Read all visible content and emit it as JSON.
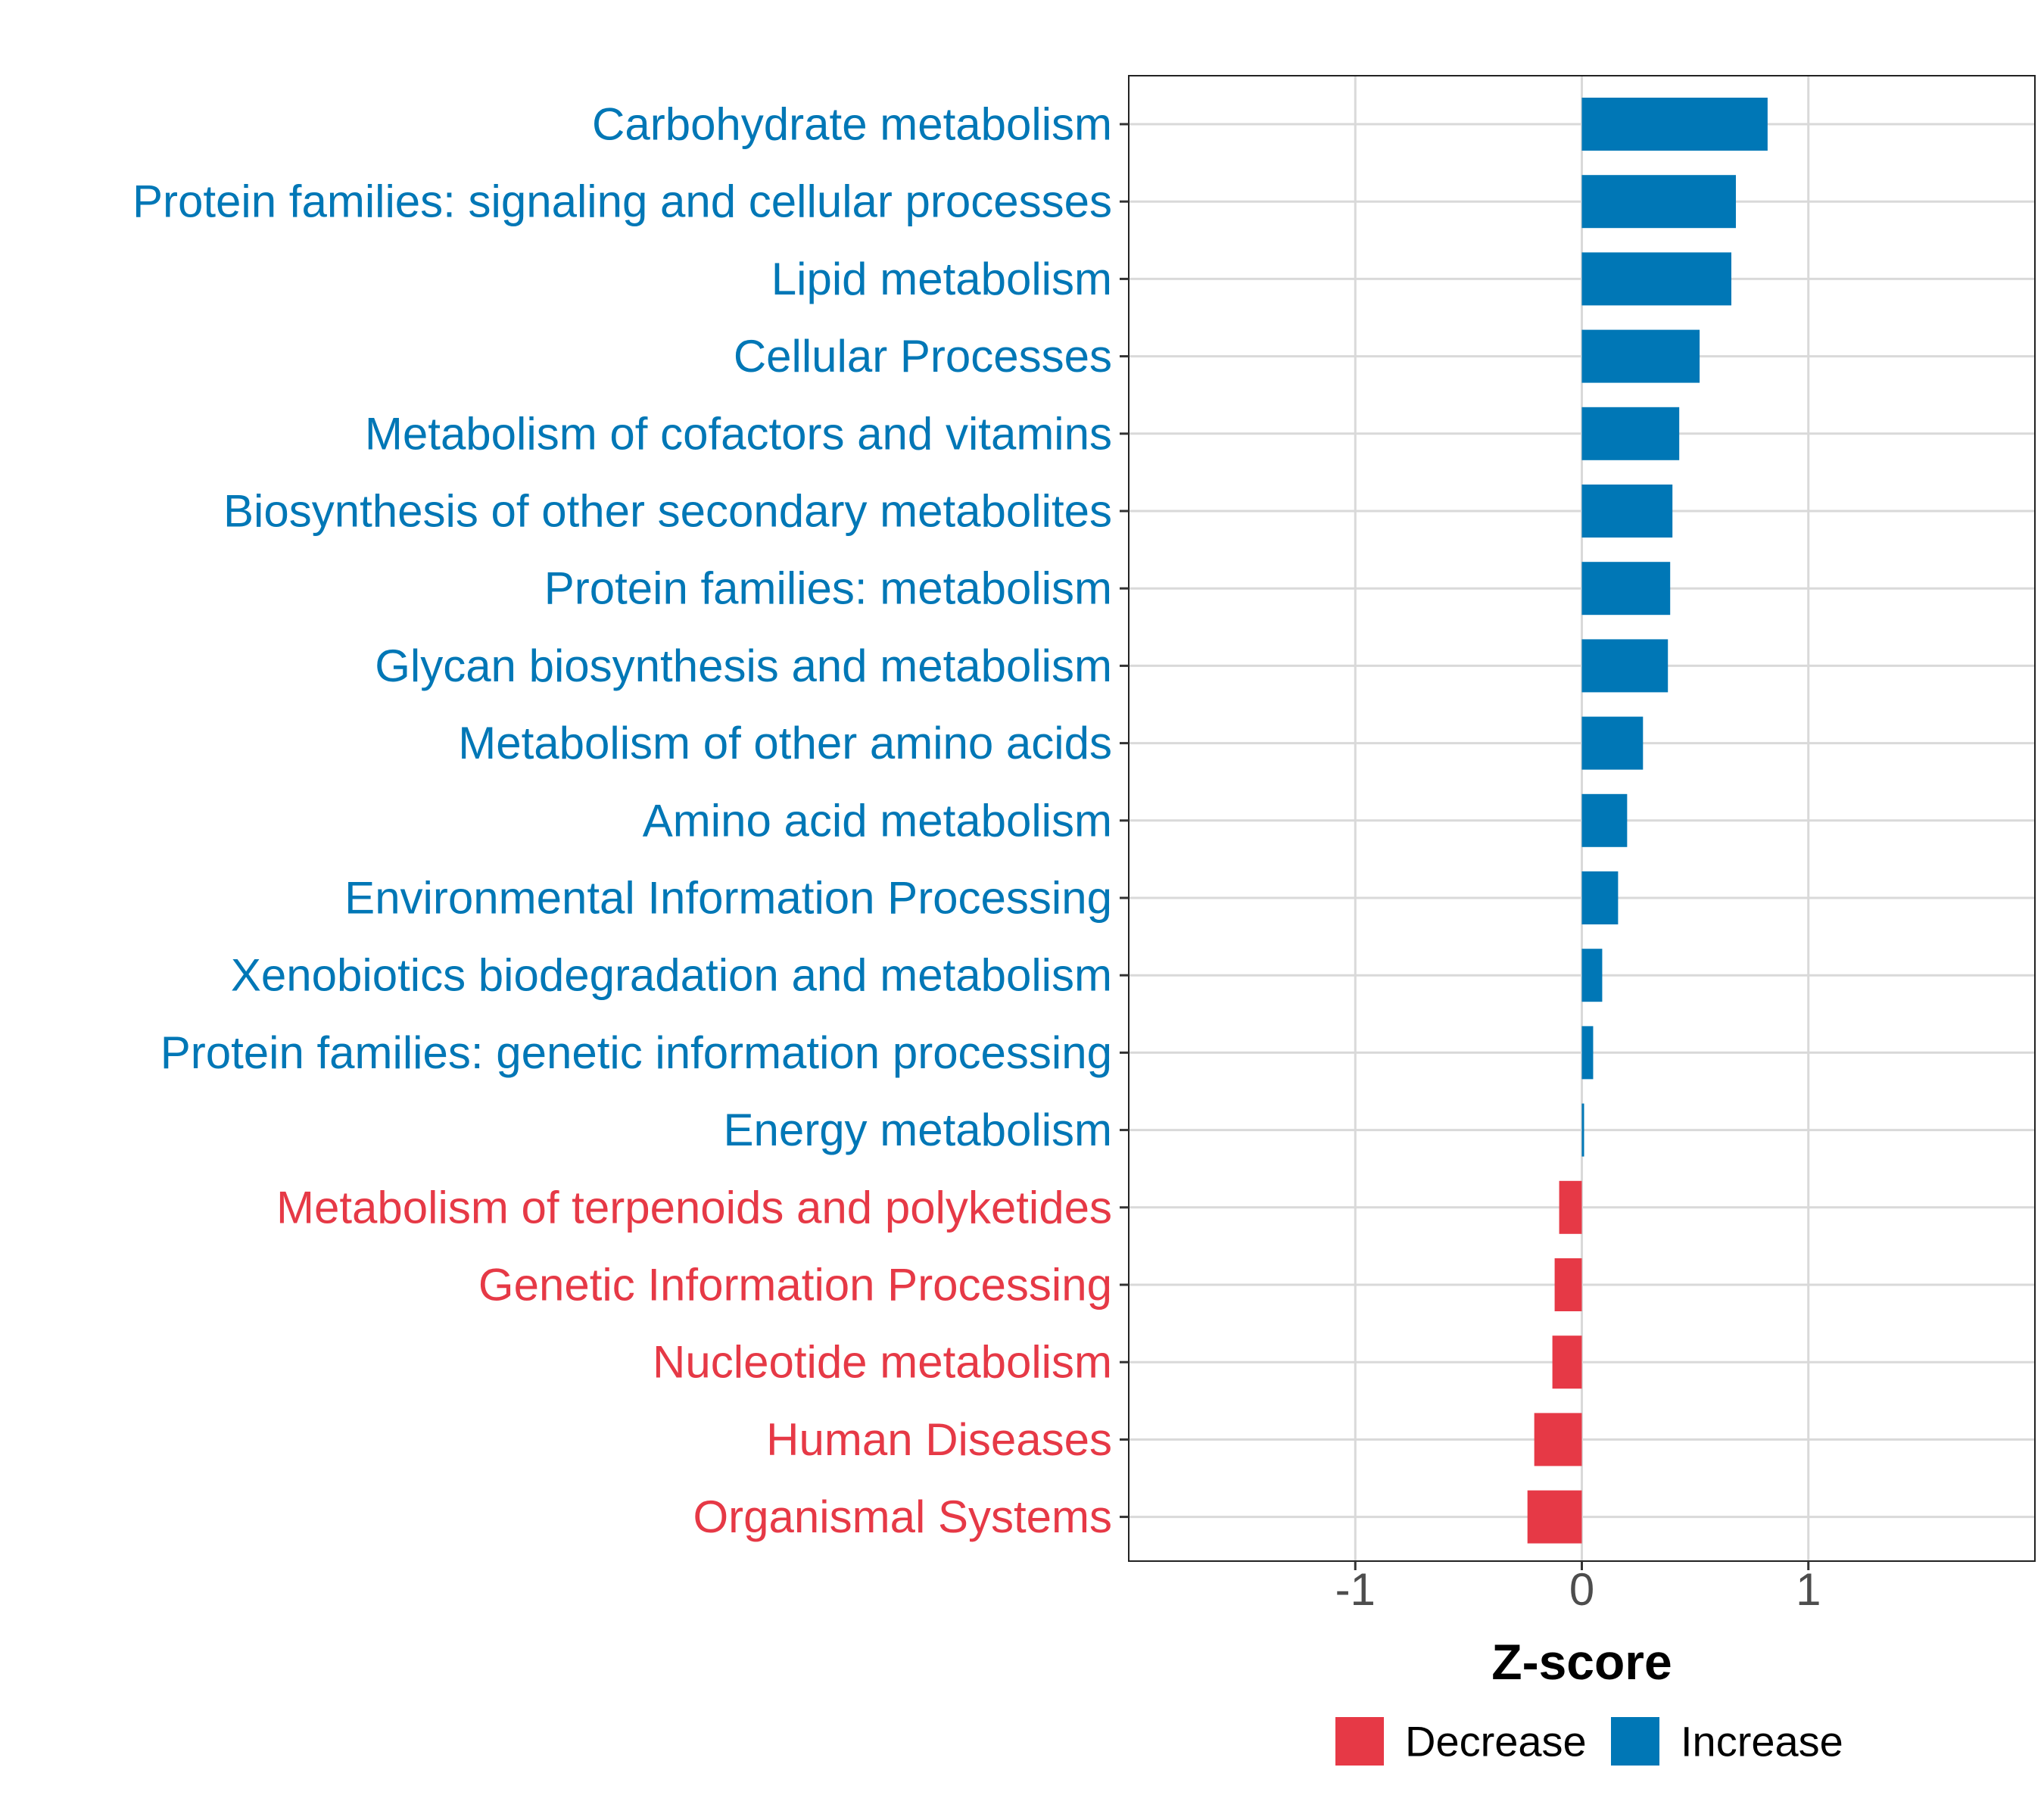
{
  "chart_data": {
    "type": "bar",
    "orientation": "horizontal",
    "title": "",
    "xlabel": "Z-score",
    "ylabel": "",
    "xlim": [
      -2.0,
      2.0
    ],
    "x_ticks": [
      -1,
      0,
      1
    ],
    "x_tick_labels": [
      "-1",
      "0",
      "1"
    ],
    "grid": true,
    "categories": [
      "Carbohydrate metabolism",
      "Protein families: signaling and cellular processes",
      "Lipid metabolism",
      "Cellular Processes",
      "Metabolism of cofactors and vitamins",
      "Biosynthesis of other secondary metabolites",
      "Protein families: metabolism",
      "Glycan biosynthesis and metabolism",
      "Metabolism of other amino acids",
      "Amino acid metabolism",
      "Environmental Information Processing",
      "Xenobiotics biodegradation and metabolism",
      "Protein families: genetic information processing",
      "Energy metabolism",
      "Metabolism of terpenoids and polyketides",
      "Genetic Information Processing",
      "Nucleotide metabolism",
      "Human Diseases",
      "Organismal Systems"
    ],
    "values": [
      0.82,
      0.68,
      0.66,
      0.52,
      0.43,
      0.4,
      0.39,
      0.38,
      0.27,
      0.2,
      0.16,
      0.09,
      0.05,
      0.01,
      -0.1,
      -0.12,
      -0.13,
      -0.21,
      -0.24
    ],
    "groups": [
      "Increase",
      "Increase",
      "Increase",
      "Increase",
      "Increase",
      "Increase",
      "Increase",
      "Increase",
      "Increase",
      "Increase",
      "Increase",
      "Increase",
      "Increase",
      "Increase",
      "Decrease",
      "Decrease",
      "Decrease",
      "Decrease",
      "Decrease"
    ],
    "legend": {
      "position": "bottom",
      "entries": [
        {
          "label": "Decrease",
          "color": "#e63946"
        },
        {
          "label": "Increase",
          "color": "#0077b6"
        }
      ]
    },
    "colors": {
      "Increase": "#0077b6",
      "Decrease": "#e63946"
    }
  }
}
